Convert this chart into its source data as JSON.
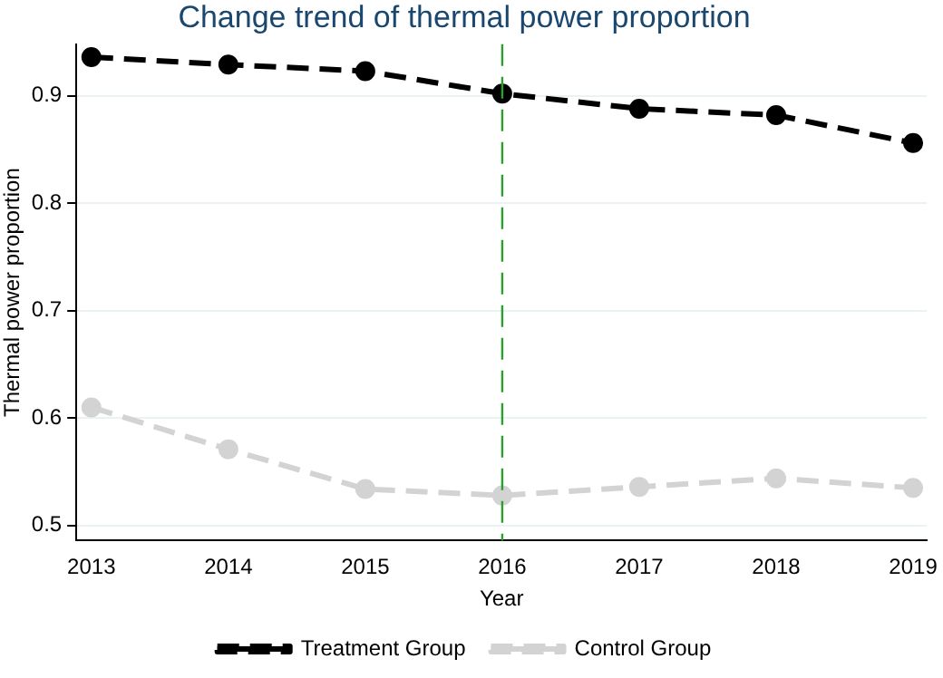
{
  "chart_data": {
    "type": "line",
    "title": "Change trend of thermal power proportion",
    "xlabel": "Year",
    "ylabel": "Thermal power proportion",
    "x": [
      2013,
      2014,
      2015,
      2016,
      2017,
      2018,
      2019
    ],
    "series": [
      {
        "name": "Treatment Group",
        "color": "#000000",
        "values": [
          0.936,
          0.929,
          0.923,
          0.902,
          0.888,
          0.882,
          0.856
        ]
      },
      {
        "name": "Control Group",
        "color": "#d3d3d3",
        "values": [
          0.61,
          0.571,
          0.534,
          0.528,
          0.536,
          0.544,
          0.535
        ]
      }
    ],
    "xlim": [
      2012.89,
      2019.1
    ],
    "xticks": [
      2013,
      2014,
      2015,
      2016,
      2017,
      2018,
      2019
    ],
    "ylim": [
      0.486,
      0.948
    ],
    "yticks": [
      0.5,
      0.6,
      0.7,
      0.8,
      0.9
    ],
    "ref_lines": [
      {
        "axis": "x",
        "value": 2016,
        "color": "#2ca02c",
        "line_style": "dashed"
      }
    ],
    "grid": "y",
    "legend": "bottom",
    "marker": "circle",
    "line_style": "dashed"
  }
}
